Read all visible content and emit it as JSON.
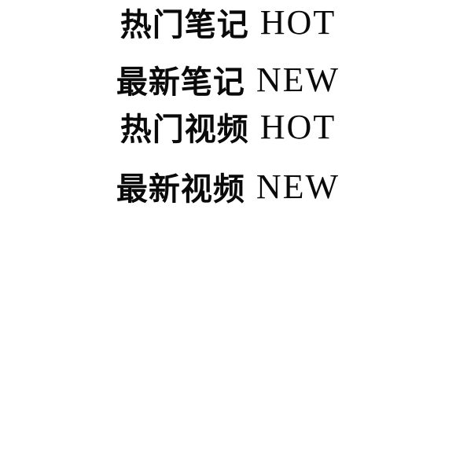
{
  "menu": {
    "items": [
      {
        "label_cn": "热门笔记",
        "label_en": "HOT"
      },
      {
        "label_cn": "最新笔记",
        "label_en": "NEW"
      },
      {
        "label_cn": "热门视频",
        "label_en": "HOT"
      },
      {
        "label_cn": "最新视频",
        "label_en": "NEW"
      }
    ]
  },
  "colors": {
    "text": "#0a0a0a",
    "background": "#ffffff"
  }
}
